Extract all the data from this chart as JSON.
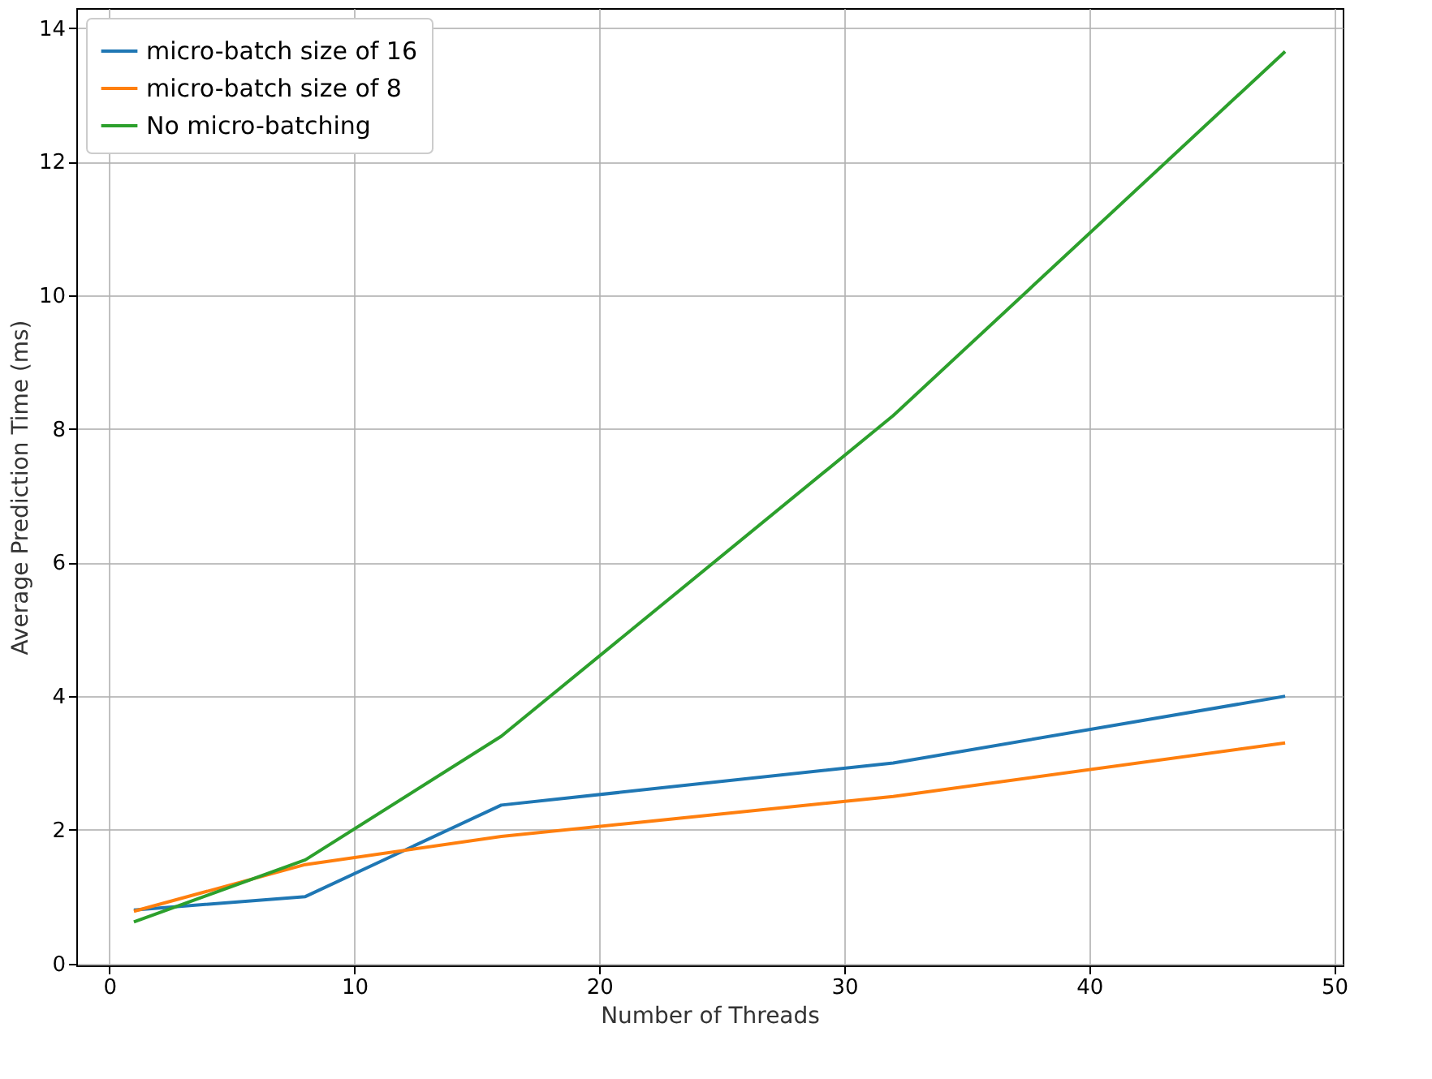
{
  "chart_data": {
    "type": "line",
    "xlabel": "Number of Threads",
    "ylabel": "Average Prediction Time (ms)",
    "x": [
      1,
      8,
      16,
      32,
      48
    ],
    "series": [
      {
        "name": "micro-batch size of 16",
        "color": "#1f77b4",
        "values": [
          0.8,
          1.0,
          2.37,
          3.0,
          4.0
        ]
      },
      {
        "name": "micro-batch size of 8",
        "color": "#ff7f0e",
        "values": [
          0.78,
          1.48,
          1.9,
          2.5,
          3.3
        ]
      },
      {
        "name": "No micro-batching",
        "color": "#2ca02c",
        "values": [
          0.62,
          1.55,
          3.4,
          8.2,
          13.65
        ]
      }
    ],
    "xlim": [
      -1.35,
      50.35
    ],
    "ylim": [
      -0.03,
      14.3
    ],
    "xticks": [
      0,
      10,
      20,
      30,
      40,
      50
    ],
    "yticks": [
      0,
      2,
      4,
      6,
      8,
      10,
      12,
      14
    ],
    "grid": true,
    "legend": "top left",
    "marker": "none",
    "line_style": "solid"
  }
}
